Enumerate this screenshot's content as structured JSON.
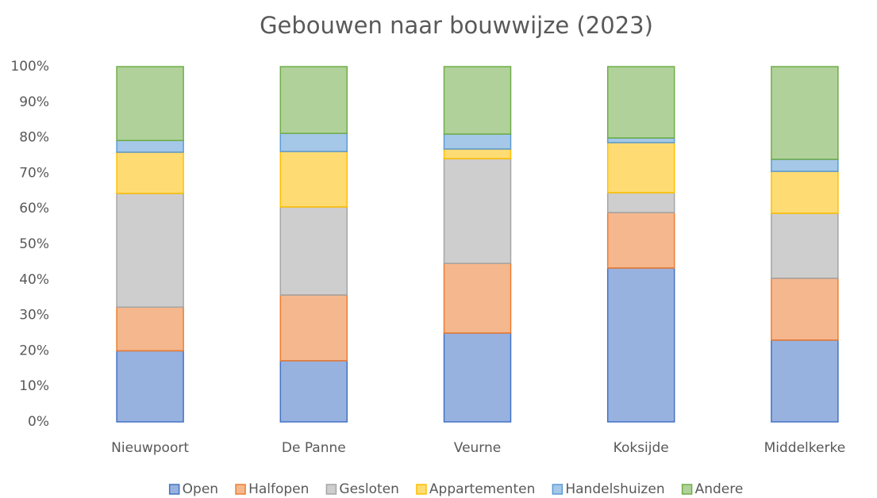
{
  "chart_data": {
    "type": "stacked-bar-100",
    "title": "Gebouwen naar bouwwijze (2023)",
    "categories": [
      "Nieuwpoort",
      "De Panne",
      "Veurne",
      "Koksijde",
      "Middelkerke"
    ],
    "series": [
      {
        "name": "Open",
        "color": "#4472c4",
        "values": [
          20,
          17.2,
          25,
          43.3,
          23
        ]
      },
      {
        "name": "Halfopen",
        "color": "#ed7d31",
        "values": [
          12.3,
          18.5,
          19.6,
          15.6,
          17.4
        ]
      },
      {
        "name": "Gesloten",
        "color": "#a5a5a5",
        "values": [
          32,
          24.8,
          29.5,
          5.6,
          18.3
        ]
      },
      {
        "name": "Appartementen",
        "color": "#ffc000",
        "values": [
          11.6,
          15.6,
          2.7,
          14.1,
          11.8
        ]
      },
      {
        "name": "Handelshuizen",
        "color": "#5b9bd5",
        "values": [
          3.3,
          5.1,
          4.2,
          1.3,
          3.4
        ]
      },
      {
        "name": "Andere",
        "color": "#70ad47",
        "values": [
          20.8,
          18.8,
          19,
          20.1,
          26.1
        ]
      }
    ],
    "ylim": [
      0,
      100
    ],
    "yticks": [
      {
        "value": 0,
        "label": "0%"
      },
      {
        "value": 10,
        "label": "10%"
      },
      {
        "value": 20,
        "label": "20%"
      },
      {
        "value": 30,
        "label": "30%"
      },
      {
        "value": 40,
        "label": "40%"
      },
      {
        "value": 50,
        "label": "50%"
      },
      {
        "value": 60,
        "label": "60%"
      },
      {
        "value": 70,
        "label": "70%"
      },
      {
        "value": 80,
        "label": "80%"
      },
      {
        "value": 90,
        "label": "90%"
      },
      {
        "value": 100,
        "label": "100%"
      }
    ],
    "legend": "bottom"
  }
}
